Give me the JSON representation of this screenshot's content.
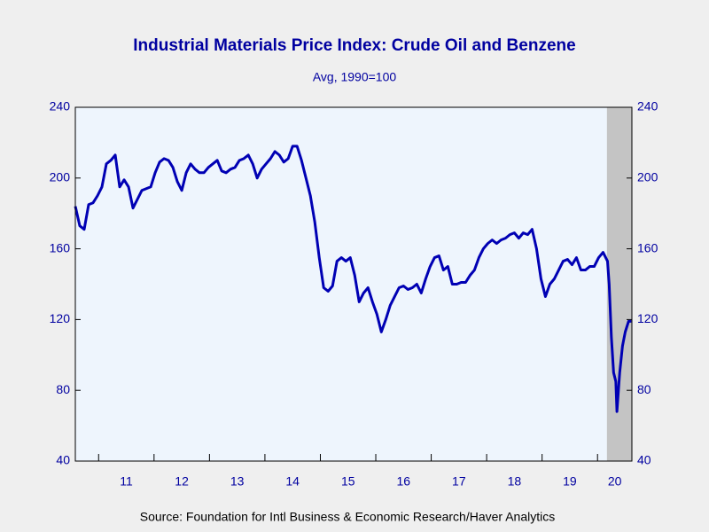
{
  "chart_data": {
    "type": "line",
    "title": "Industrial Materials Price Index: Crude Oil and Benzene",
    "subtitle": "Avg, 1990=100",
    "source": "Source:  Foundation for Intl Business & Economic Research/Haver Analytics",
    "x": [
      2010.58,
      2010.66,
      2010.74,
      2010.82,
      2010.9,
      2010.98,
      2011.06,
      2011.14,
      2011.22,
      2011.3,
      2011.38,
      2011.46,
      2011.54,
      2011.62,
      2011.7,
      2011.78,
      2011.86,
      2011.94,
      2012.02,
      2012.1,
      2012.18,
      2012.26,
      2012.34,
      2012.42,
      2012.5,
      2012.58,
      2012.66,
      2012.74,
      2012.82,
      2012.9,
      2012.98,
      2013.06,
      2013.14,
      2013.22,
      2013.3,
      2013.38,
      2013.46,
      2013.54,
      2013.62,
      2013.7,
      2013.78,
      2013.86,
      2013.94,
      2014.02,
      2014.1,
      2014.18,
      2014.26,
      2014.34,
      2014.42,
      2014.5,
      2014.58,
      2014.66,
      2014.74,
      2014.82,
      2014.9,
      2014.98,
      2015.06,
      2015.14,
      2015.22,
      2015.3,
      2015.38,
      2015.46,
      2015.54,
      2015.62,
      2015.7,
      2015.78,
      2015.86,
      2015.94,
      2016.02,
      2016.1,
      2016.18,
      2016.26,
      2016.34,
      2016.42,
      2016.5,
      2016.58,
      2016.66,
      2016.74,
      2016.82,
      2016.9,
      2016.98,
      2017.06,
      2017.14,
      2017.22,
      2017.3,
      2017.38,
      2017.46,
      2017.54,
      2017.62,
      2017.7,
      2017.78,
      2017.86,
      2017.94,
      2018.02,
      2018.1,
      2018.18,
      2018.26,
      2018.34,
      2018.42,
      2018.5,
      2018.58,
      2018.66,
      2018.74,
      2018.82,
      2018.9,
      2018.98,
      2019.06,
      2019.14,
      2019.22,
      2019.3,
      2019.38,
      2019.46,
      2019.54,
      2019.62,
      2019.7,
      2019.78,
      2019.86,
      2019.94,
      2020.02,
      2020.1,
      2020.18,
      2020.21,
      2020.25,
      2020.29,
      2020.33,
      2020.35,
      2020.4,
      2020.45,
      2020.5,
      2020.56,
      2020.61
    ],
    "series": [
      {
        "color": "#0000b4",
        "values": [
          184,
          173,
          171,
          185,
          186,
          190,
          195,
          208,
          210,
          213,
          195,
          199,
          195,
          183,
          188,
          193,
          194,
          195,
          203,
          209,
          211,
          210,
          206,
          198,
          193,
          203,
          208,
          205,
          203,
          203,
          206,
          208,
          210,
          204,
          203,
          205,
          206,
          210,
          211,
          213,
          208,
          200,
          205,
          208,
          211,
          215,
          213,
          209,
          211,
          218,
          218,
          210,
          200,
          190,
          175,
          155,
          138,
          136,
          139,
          153,
          155,
          153,
          155,
          145,
          130,
          135,
          138,
          130,
          123,
          113,
          120,
          128,
          133,
          138,
          139,
          137,
          138,
          140,
          135,
          143,
          150,
          155,
          156,
          148,
          150,
          140,
          140,
          141,
          141,
          145,
          148,
          155,
          160,
          163,
          165,
          163,
          165,
          166,
          168,
          169,
          166,
          169,
          168,
          171,
          160,
          143,
          133,
          140,
          143,
          148,
          153,
          154,
          151,
          155,
          148,
          148,
          150,
          150,
          155,
          158,
          153,
          140,
          110,
          90,
          85,
          68,
          90,
          105,
          113,
          119,
          119
        ]
      }
    ],
    "xlim": [
      2010.58,
      2020.62
    ],
    "xticks": [
      {
        "value": 2011,
        "label": "11"
      },
      {
        "value": 2012,
        "label": "12"
      },
      {
        "value": 2013,
        "label": "13"
      },
      {
        "value": 2014,
        "label": "14"
      },
      {
        "value": 2015,
        "label": "15"
      },
      {
        "value": 2016,
        "label": "16"
      },
      {
        "value": 2017,
        "label": "17"
      },
      {
        "value": 2018,
        "label": "18"
      },
      {
        "value": 2019,
        "label": "19"
      },
      {
        "value": 2020,
        "label": "20"
      }
    ],
    "ylim": [
      40,
      240
    ],
    "yticks": [
      40,
      80,
      120,
      160,
      200,
      240
    ],
    "recession": [
      2020.17,
      2020.62
    ],
    "recession_color": "#c4c4c4",
    "plot_background": "#eef5fd"
  }
}
